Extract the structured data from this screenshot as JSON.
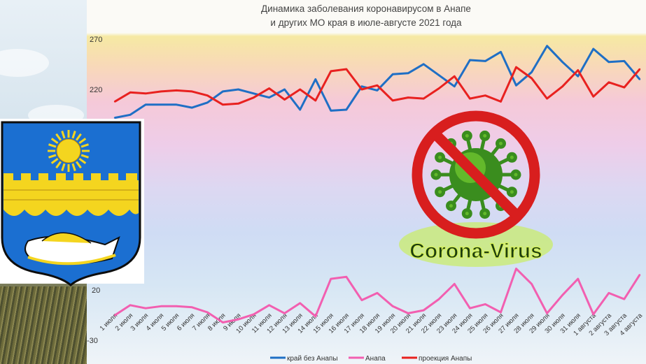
{
  "chart_data": {
    "type": "line",
    "title": "Динамика заболевания коронавирусом в Анапе\nи других МО края в июле-августе 2021 года",
    "title_lines": [
      "Динамика заболевания коронавирусом в Анапе",
      "и других МО края в июле-августе 2021 года"
    ],
    "y_ticks": [
      "270",
      "220",
      "20",
      "-30"
    ],
    "categories": [
      "1 июля",
      "2 июля",
      "3 июля",
      "4 июля",
      "5 июля",
      "6 июля",
      "7 июля",
      "8 июля",
      "9 июля",
      "10 июля",
      "11 июля",
      "12 июля",
      "13 июля",
      "14 июля",
      "15 июля",
      "16 июля",
      "17 июля",
      "18 июля",
      "19 июля",
      "20 июля",
      "21 июля",
      "22 июля",
      "23 июля",
      "24 июля",
      "25 июля",
      "26 июля",
      "27 июля",
      "28 июля",
      "29 июля",
      "30 июля",
      "31 июля",
      "1 августа",
      "2 августа",
      "3 августа",
      "4 августа"
    ],
    "series": [
      {
        "name": "край без Анапы",
        "color": "#1f6fc5",
        "values": [
          192,
          195,
          205,
          205,
          205,
          202,
          207,
          218,
          220,
          216,
          212,
          220,
          200,
          230,
          199,
          200,
          223,
          219,
          235,
          236,
          245,
          234,
          223,
          249,
          248,
          257,
          224,
          237,
          263,
          247,
          233,
          260,
          247,
          248,
          230
        ]
      },
      {
        "name": "Анапа",
        "color": "#f25fb0",
        "values": [
          -3,
          7,
          4,
          6,
          6,
          5,
          0,
          -10,
          -7,
          -2,
          7,
          -1,
          9,
          -4,
          33,
          35,
          12,
          19,
          6,
          -1,
          2,
          13,
          28,
          4,
          8,
          0,
          43,
          28,
          -1,
          17,
          33,
          -2,
          19,
          13,
          37
        ]
      },
      {
        "name": "проекция Анапы",
        "color": "#e8211f",
        "values": [
          208,
          217,
          216,
          218,
          219,
          218,
          214,
          205,
          206,
          212,
          221,
          210,
          220,
          209,
          238,
          240,
          220,
          224,
          209,
          212,
          211,
          221,
          233,
          211,
          214,
          208,
          242,
          231,
          211,
          223,
          239,
          213,
          227,
          222,
          240
        ]
      }
    ],
    "logo_text": "Corona-Virus"
  }
}
